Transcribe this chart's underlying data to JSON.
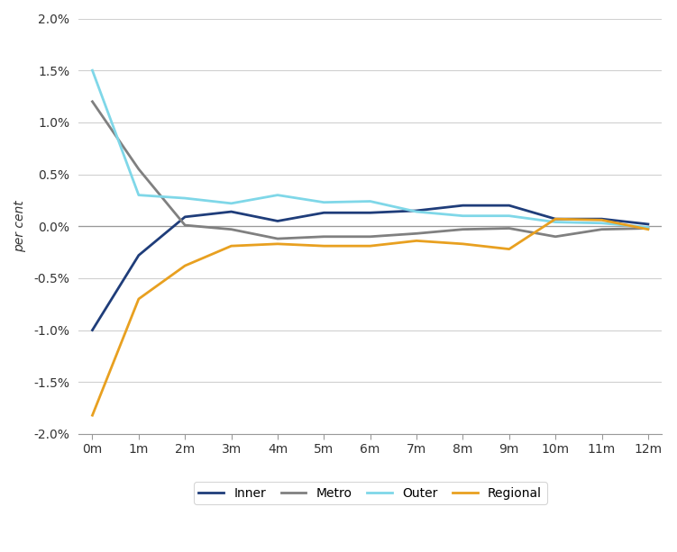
{
  "x_labels": [
    "0m",
    "1m",
    "2m",
    "3m",
    "4m",
    "5m",
    "6m",
    "7m",
    "8m",
    "9m",
    "10m",
    "11m",
    "12m"
  ],
  "x_values": [
    0,
    1,
    2,
    3,
    4,
    5,
    6,
    7,
    8,
    9,
    10,
    11,
    12
  ],
  "inner": [
    -1.0,
    -0.28,
    0.09,
    0.14,
    0.05,
    0.13,
    0.13,
    0.15,
    0.2,
    0.2,
    0.07,
    0.07,
    0.02
  ],
  "metro": [
    1.2,
    0.55,
    0.01,
    -0.03,
    -0.12,
    -0.1,
    -0.1,
    -0.07,
    -0.03,
    -0.02,
    -0.1,
    -0.03,
    -0.02
  ],
  "outer": [
    1.5,
    0.3,
    0.27,
    0.22,
    0.3,
    0.23,
    0.24,
    0.14,
    0.1,
    0.1,
    0.04,
    0.03,
    -0.01
  ],
  "regional": [
    -1.82,
    -0.7,
    -0.38,
    -0.19,
    -0.17,
    -0.19,
    -0.19,
    -0.14,
    -0.17,
    -0.22,
    0.07,
    0.06,
    -0.03
  ],
  "inner_color": "#1f3d7a",
  "metro_color": "#808080",
  "outer_color": "#7fd7e8",
  "regional_color": "#e8a020",
  "ylim": [
    -2.0,
    2.0
  ],
  "yticks": [
    -2.0,
    -1.5,
    -1.0,
    -0.5,
    0.0,
    0.5,
    1.0,
    1.5,
    2.0
  ],
  "ytick_labels": [
    "-2.0%",
    "-1.5%",
    "-1.0%",
    "-0.5%",
    "0.0%",
    "0.5%",
    "1.0%",
    "1.5%",
    "2.0%"
  ],
  "ylabel": "per cent",
  "background_color": "#ffffff",
  "grid_color": "#d0d0d0",
  "zero_line_color": "#999999",
  "spine_color": "#999999",
  "linewidth": 2.0
}
